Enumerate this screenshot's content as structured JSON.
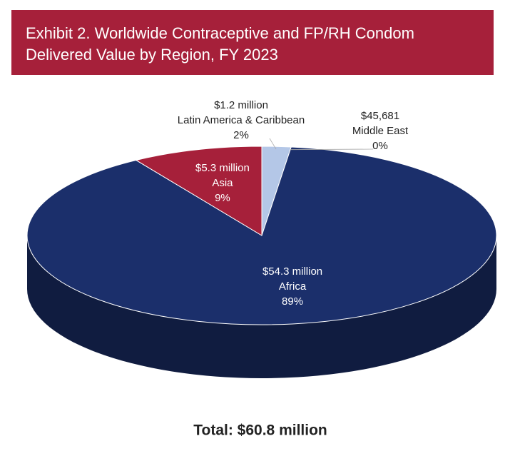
{
  "chart_data": {
    "type": "pie",
    "title": "Exhibit 2. Worldwide Contraceptive and FP/RH Condom Delivered Value by Region, FY 2023",
    "categories": [
      "Latin America & Caribbean",
      "Middle East",
      "Africa",
      "Asia"
    ],
    "values": [
      2,
      0,
      89,
      9
    ],
    "value_labels": [
      "2%",
      "0%",
      "89%",
      "9%"
    ],
    "amount_labels": [
      "$1.2 million",
      "$45,681",
      "$54.3 million",
      "$5.3 million"
    ],
    "colors": [
      "#b4c7e7",
      "#c9d6ea",
      "#1b2f6b",
      "#a6203a"
    ],
    "total": "Total: $60.8 million"
  }
}
